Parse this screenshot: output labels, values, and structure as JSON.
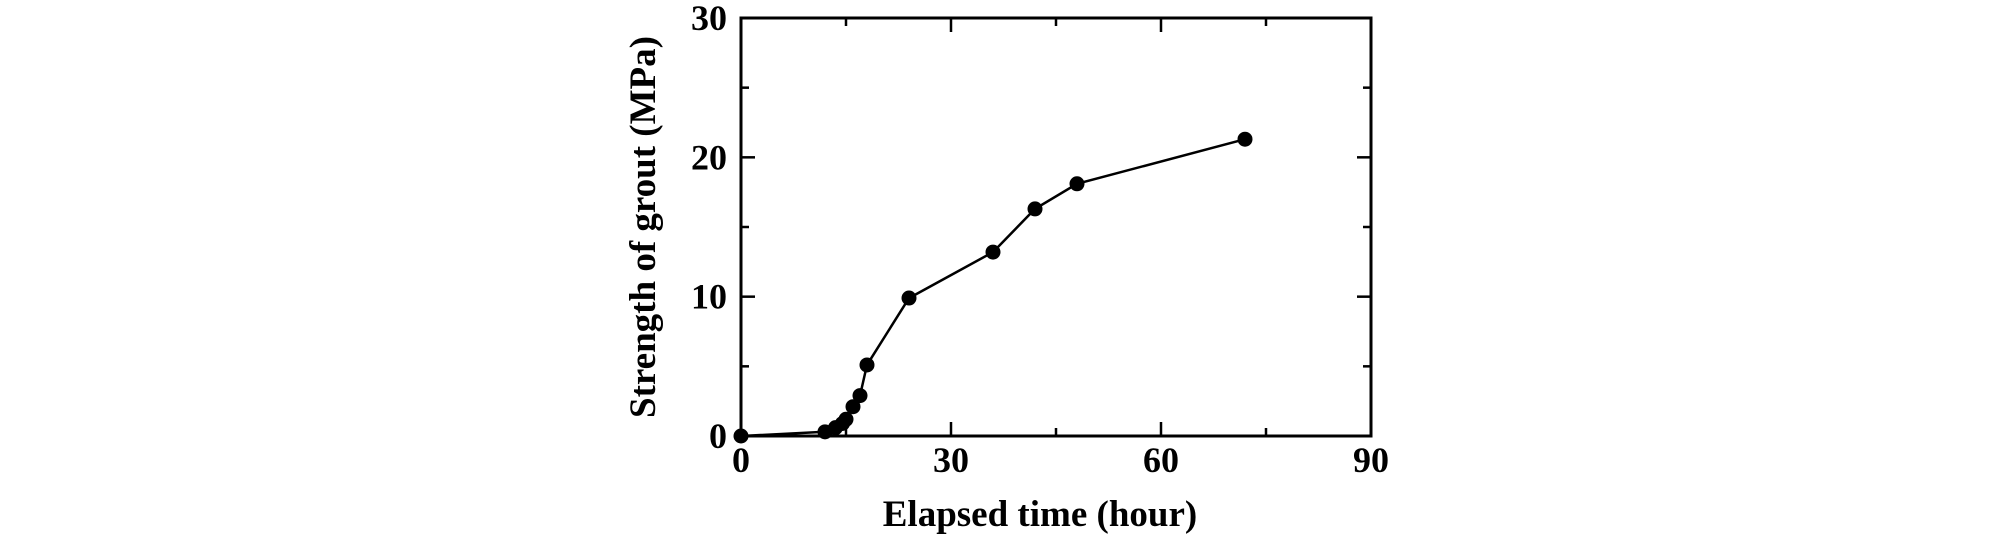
{
  "chart_data": {
    "type": "line",
    "title": "",
    "xlabel": "Elapsed time (hour)",
    "ylabel": "Strength of grout (MPa)",
    "xlim": [
      0,
      90
    ],
    "ylim": [
      0,
      30
    ],
    "xticks": [
      0,
      30,
      60,
      90
    ],
    "yticks": [
      0,
      10,
      20,
      30
    ],
    "xtick_labels": [
      "0",
      "30",
      "60",
      "90"
    ],
    "ytick_labels": [
      "0",
      "10",
      "20",
      "30"
    ],
    "minor_ticks_x": [
      15,
      45,
      75
    ],
    "minor_ticks_y": [
      5,
      15,
      25
    ],
    "grid": false,
    "legend": "none",
    "marker": "filled-circle",
    "line_color": "#000000",
    "series": [
      {
        "x": [
          0,
          12,
          13.5,
          14.5,
          15,
          16,
          17,
          18,
          24,
          36,
          42,
          48,
          72
        ],
        "y": [
          0,
          0.3,
          0.6,
          0.9,
          1.2,
          2.1,
          2.9,
          5.1,
          9.9,
          13.2,
          16.3,
          18.1,
          21.3
        ]
      }
    ]
  }
}
